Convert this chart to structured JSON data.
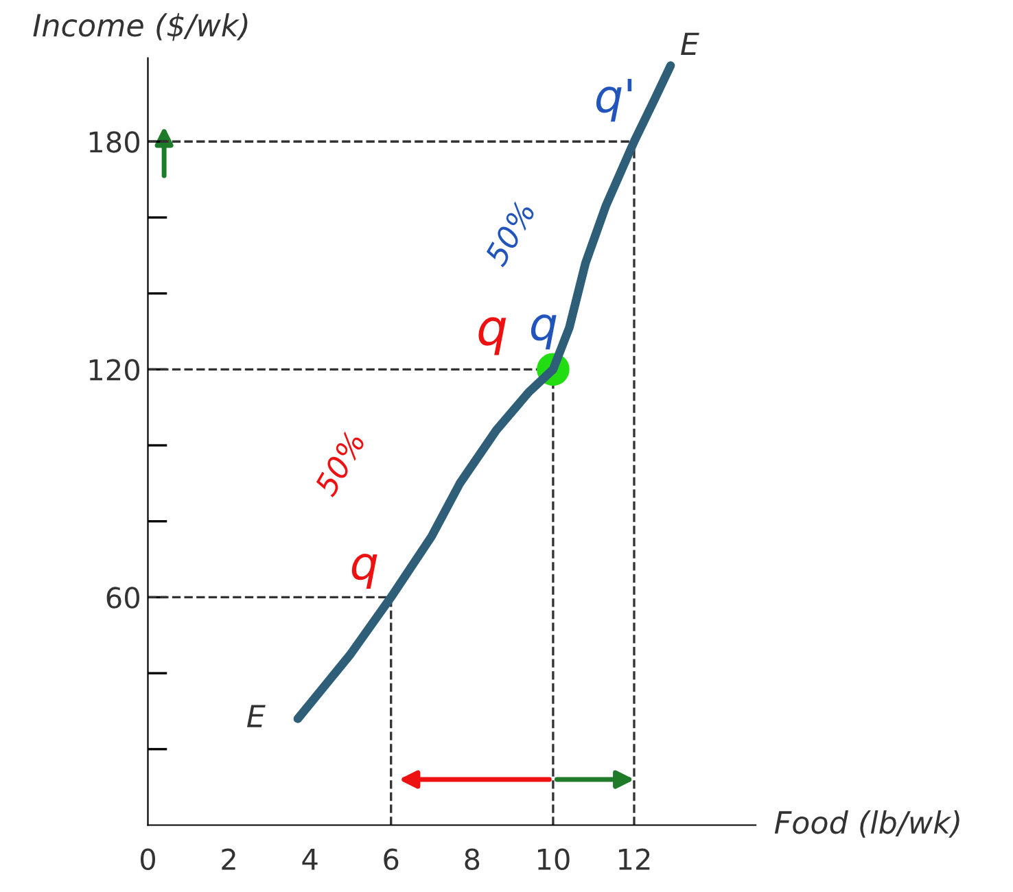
{
  "chart_data": {
    "type": "line",
    "xlabel": "Food (lb/wk)",
    "ylabel": "Income ($/wk)",
    "series": [
      {
        "color": "#2f5f78",
        "x": [
          3.7,
          5.0,
          6.0,
          7.0,
          7.7,
          8.6,
          9.4,
          10.0,
          10.4,
          10.8,
          11.3,
          12.0,
          12.5,
          12.9
        ],
        "values": [
          28,
          45,
          60,
          76,
          90,
          104,
          114,
          120,
          131,
          148,
          163,
          180,
          191,
          200
        ]
      },
      {
        "type": "scatter",
        "color": "#22dd11",
        "marker": "circle",
        "x": [
          10
        ],
        "values": [
          120
        ]
      }
    ],
    "xlim": [
      0,
      15
    ],
    "ylim": [
      0,
      202
    ],
    "xticks": [
      0,
      2,
      4,
      6,
      8,
      10,
      12
    ],
    "yticks": [
      {
        "value": 20,
        "label": null
      },
      {
        "value": 40,
        "label": null
      },
      60,
      {
        "value": 80,
        "label": null
      },
      {
        "value": 100,
        "label": null
      },
      120,
      {
        "value": 140,
        "label": null
      },
      {
        "value": 160,
        "label": null
      },
      180
    ],
    "ref_lines": [
      {
        "axis": "x",
        "value": 6,
        "line_style": "dashed",
        "color": "#333333"
      },
      {
        "axis": "x",
        "value": 10,
        "line_style": "dashed",
        "color": "#333333"
      },
      {
        "axis": "x",
        "value": 12,
        "line_style": "dashed",
        "color": "#333333"
      },
      {
        "axis": "y",
        "value": 60,
        "line_style": "dashed",
        "color": "#333333"
      },
      {
        "axis": "y",
        "value": 120,
        "line_style": "dashed",
        "color": "#333333"
      },
      {
        "axis": "y",
        "value": 180,
        "line_style": "dashed",
        "color": "#333333"
      }
    ],
    "annotations": [
      {
        "text": "E",
        "x": 3.7,
        "y": 28
      },
      {
        "text": "E",
        "x": 12.9,
        "y": 200
      },
      {
        "text": "q",
        "x": 6,
        "y": 60
      },
      "50%",
      {
        "text": "q",
        "x": 10,
        "y": 120
      },
      {
        "text": "q",
        "x": 10,
        "y": 120
      },
      "50%",
      {
        "text": "q'",
        "x": 12,
        "y": 180
      }
    ],
    "grid": false,
    "line_style": "solid"
  }
}
